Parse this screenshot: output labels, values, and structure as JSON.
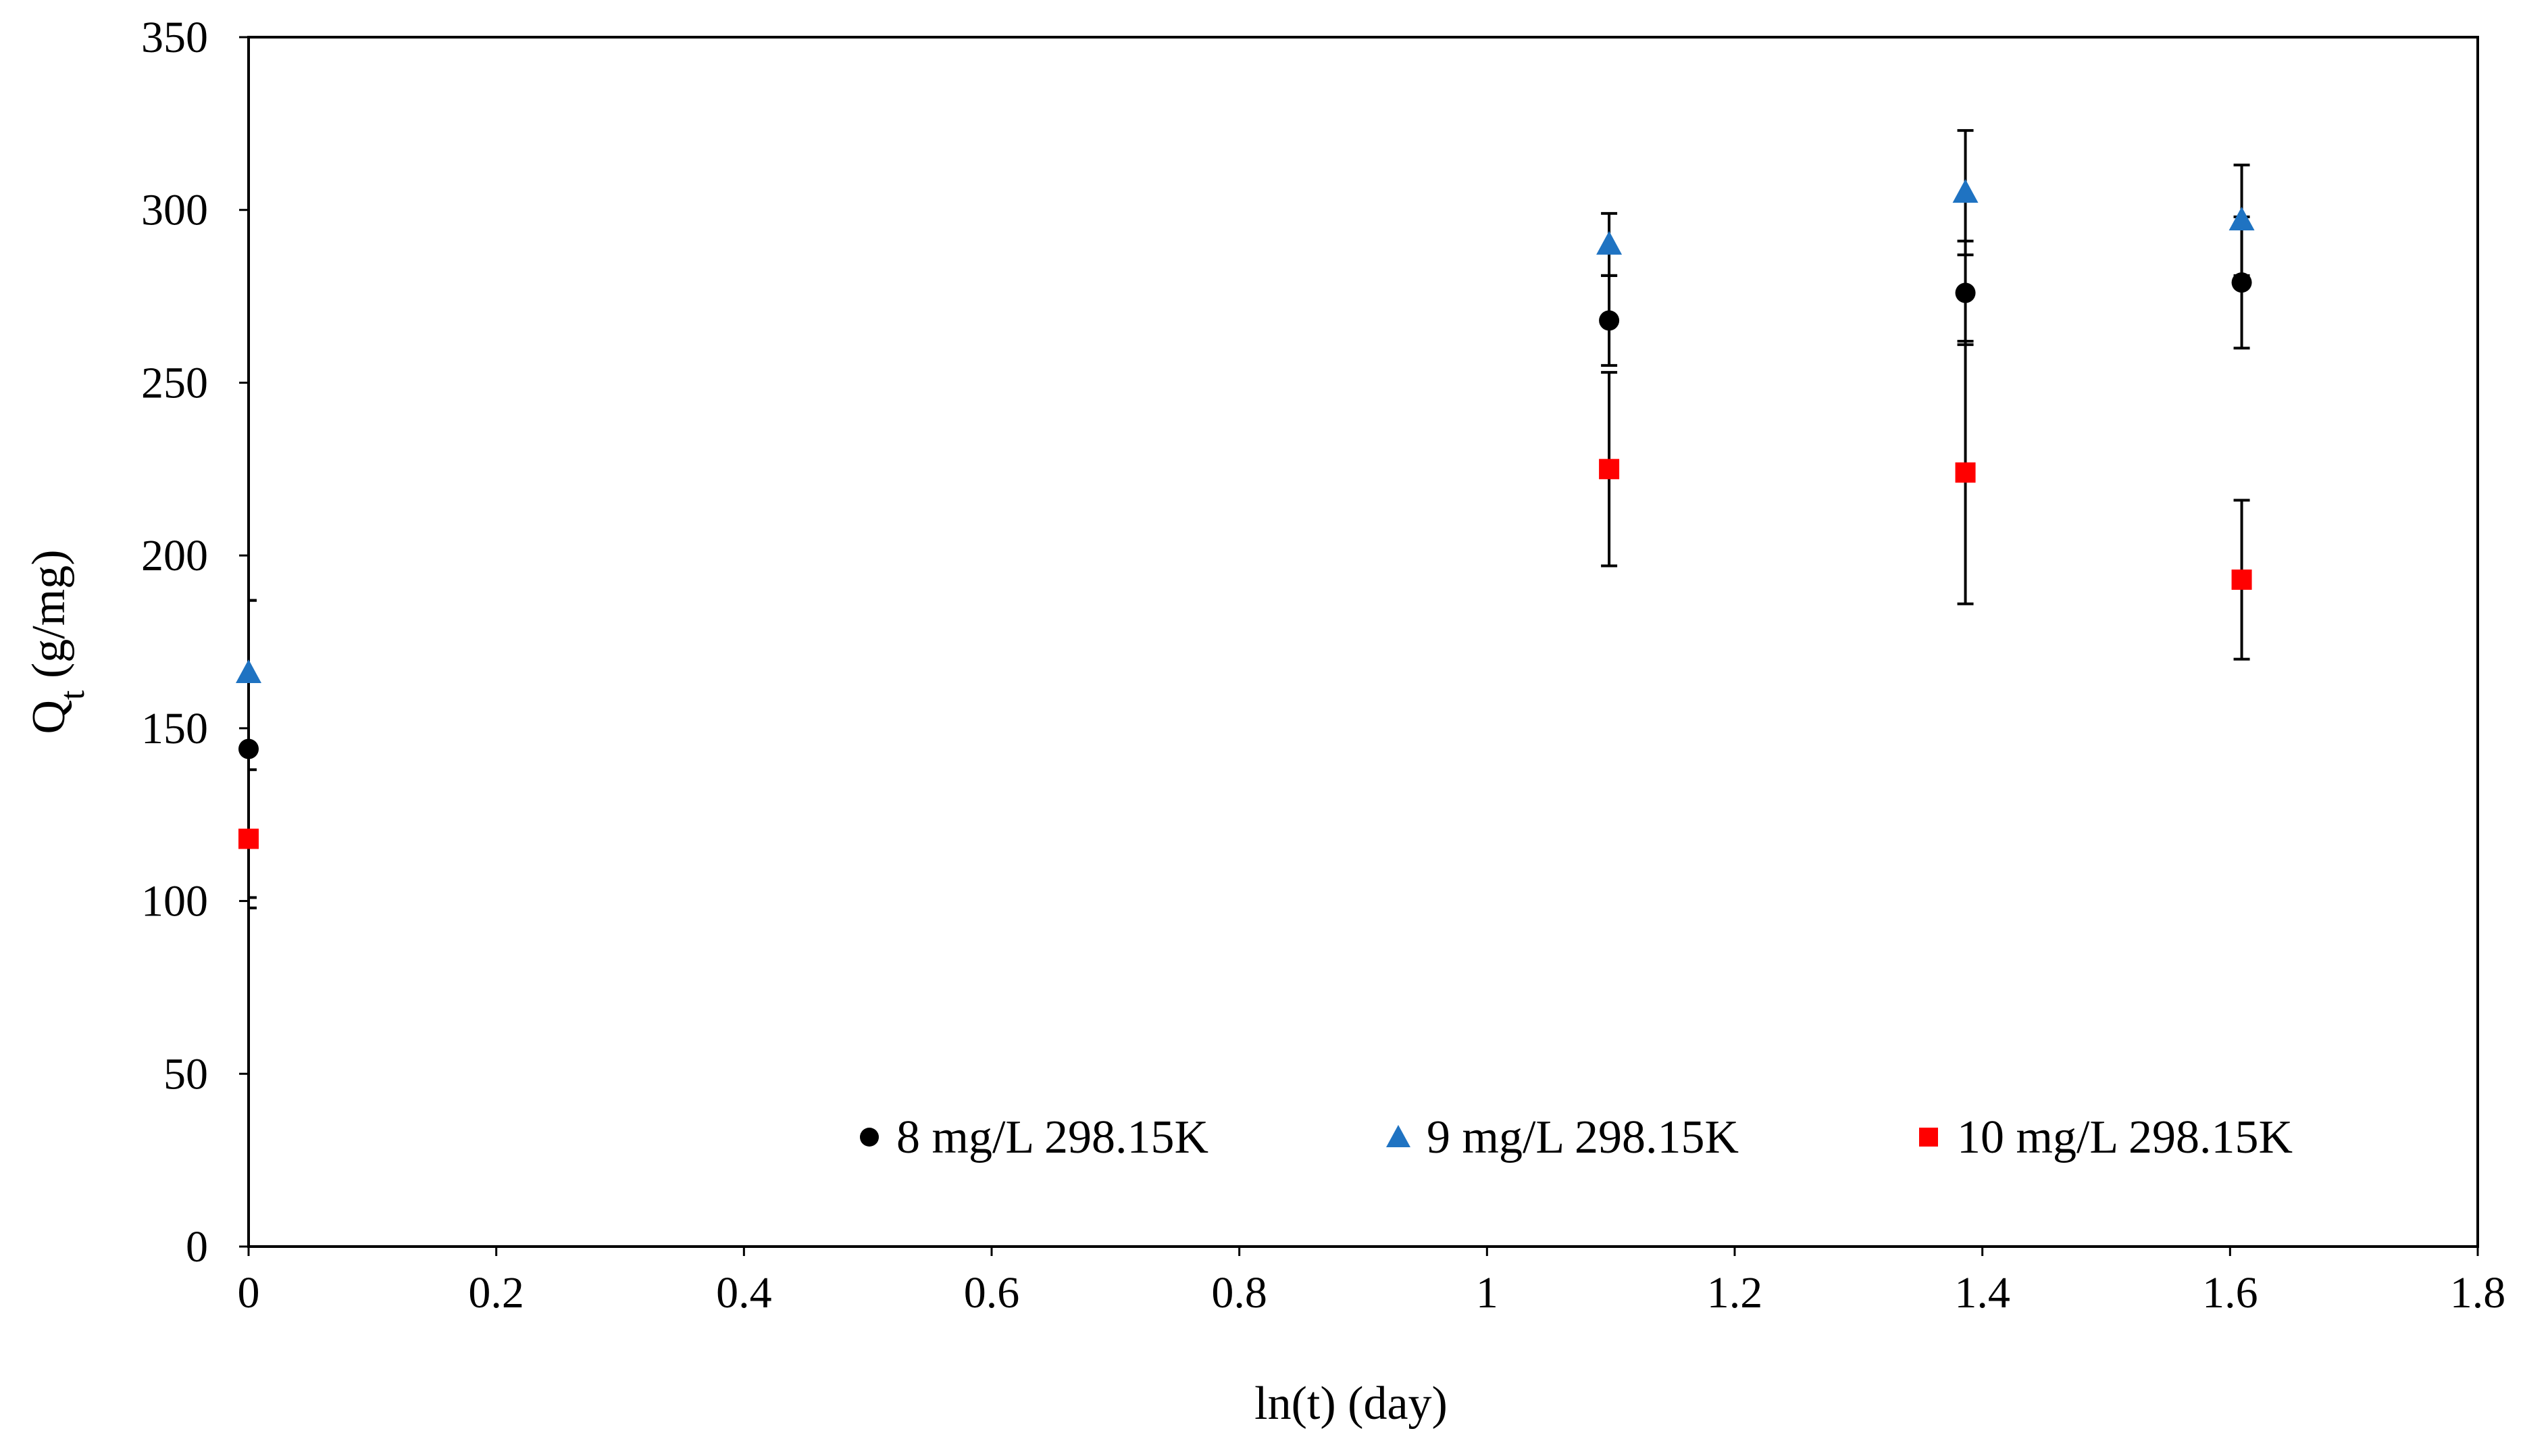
{
  "chart_data": {
    "type": "scatter",
    "title": "",
    "xlabel": "ln(t) (day)",
    "ylabel_main": "Q",
    "ylabel_sub": "t",
    "ylabel_tail": " (g/mg)",
    "xlim": [
      0,
      1.8
    ],
    "ylim": [
      0,
      350
    ],
    "x_ticks": [
      0,
      0.2,
      0.4,
      0.6,
      0.8,
      1,
      1.2,
      1.4,
      1.6,
      1.8
    ],
    "x_tick_labels": [
      "0",
      "0.2",
      "0.4",
      "0.6",
      "0.8",
      "1",
      "1.2",
      "1.4",
      "1.6",
      "1.8"
    ],
    "y_ticks": [
      0,
      50,
      100,
      150,
      200,
      250,
      300,
      350
    ],
    "y_tick_labels": [
      "0",
      "50",
      "100",
      "150",
      "200",
      "250",
      "300",
      "350"
    ],
    "grid": false,
    "legend_position": "bottom",
    "series": [
      {
        "name": "8 mg/L 298.15K",
        "marker": "circle",
        "color": "#000000",
        "x": [
          0,
          1.0986,
          1.3863,
          1.6094
        ],
        "y": [
          144,
          268,
          276,
          279
        ],
        "error": [
          43,
          13,
          15,
          19
        ]
      },
      {
        "name": "9 mg/L 298.15K",
        "marker": "triangle",
        "color": "#1f73c2",
        "x": [
          0,
          1.0986,
          1.3863,
          1.6094
        ],
        "y": [
          166,
          290,
          305,
          297
        ],
        "error": [
          21,
          9,
          18,
          16
        ]
      },
      {
        "name": "10 mg/L 298.15K",
        "marker": "square",
        "color": "#ff0000",
        "x": [
          0,
          1.0986,
          1.3863,
          1.6094
        ],
        "y": [
          118,
          225,
          224,
          193
        ],
        "error": [
          20,
          28,
          38,
          23
        ]
      }
    ]
  }
}
